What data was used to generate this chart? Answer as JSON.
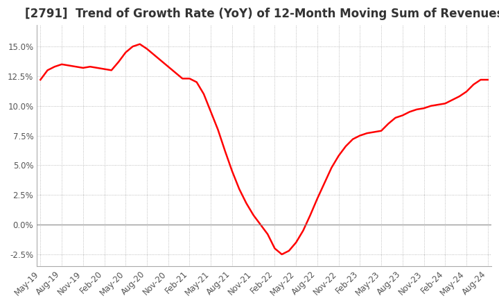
{
  "title": "[2791]  Trend of Growth Rate (YoY) of 12-Month Moving Sum of Revenues",
  "title_fontsize": 12,
  "background_color": "#ffffff",
  "plot_bg_color": "#ffffff",
  "grid_color": "#aaaaaa",
  "line_color": "#ff0000",
  "ylim": [
    -0.035,
    0.168
  ],
  "yticks": [
    -0.025,
    0.0,
    0.025,
    0.05,
    0.075,
    0.1,
    0.125,
    0.15
  ],
  "values": [
    0.122,
    0.13,
    0.133,
    0.135,
    0.134,
    0.133,
    0.132,
    0.133,
    0.132,
    0.131,
    0.13,
    0.137,
    0.145,
    0.15,
    0.152,
    0.148,
    0.143,
    0.138,
    0.133,
    0.128,
    0.123,
    0.123,
    0.12,
    0.11,
    0.095,
    0.08,
    0.062,
    0.045,
    0.03,
    0.018,
    0.008,
    0.0,
    -0.008,
    -0.02,
    -0.025,
    -0.022,
    -0.015,
    -0.005,
    0.008,
    0.022,
    0.035,
    0.048,
    0.058,
    0.066,
    0.072,
    0.075,
    0.077,
    0.078,
    0.079,
    0.085,
    0.09,
    0.092,
    0.095,
    0.097,
    0.098,
    0.1,
    0.101,
    0.102,
    0.105,
    0.108,
    0.112,
    0.118,
    0.122,
    0.122
  ],
  "xtick_positions": [
    0,
    3,
    6,
    9,
    12,
    15,
    18,
    21,
    24,
    27,
    30,
    33,
    36,
    39,
    42,
    45,
    48,
    51,
    54,
    57,
    60,
    63
  ],
  "xtick_labels": [
    "May-19",
    "Aug-19",
    "Nov-19",
    "Feb-20",
    "May-20",
    "Aug-20",
    "Nov-20",
    "Feb-21",
    "May-21",
    "Aug-21",
    "Nov-21",
    "Feb-22",
    "May-22",
    "Aug-22",
    "Nov-22",
    "Feb-23",
    "May-23",
    "Aug-23",
    "Nov-23",
    "Feb-24",
    "May-24",
    "Aug-24"
  ]
}
